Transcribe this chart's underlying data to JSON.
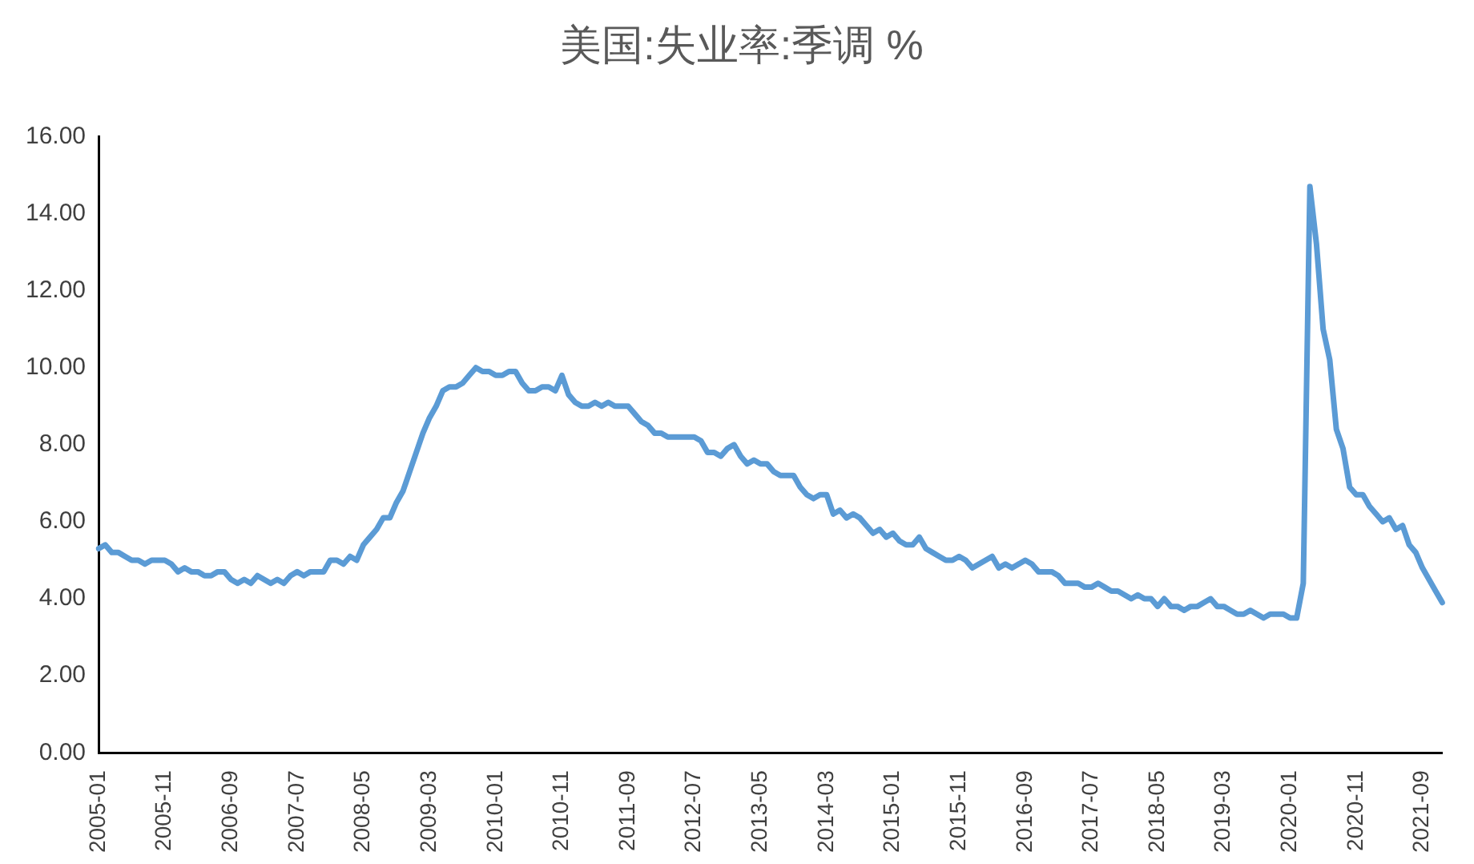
{
  "chart_data": {
    "type": "line",
    "title": "美国:失业率:季调 %",
    "categories": [
      "2005-01",
      null,
      null,
      null,
      null,
      null,
      null,
      null,
      null,
      null,
      "2005-11",
      null,
      null,
      null,
      null,
      null,
      null,
      null,
      null,
      null,
      "2006-09",
      null,
      null,
      null,
      null,
      null,
      null,
      null,
      null,
      null,
      "2007-07",
      null,
      null,
      null,
      null,
      null,
      null,
      null,
      null,
      null,
      "2008-05",
      null,
      null,
      null,
      null,
      null,
      null,
      null,
      null,
      null,
      "2009-03",
      null,
      null,
      null,
      null,
      null,
      null,
      null,
      null,
      null,
      "2010-01",
      null,
      null,
      null,
      null,
      null,
      null,
      null,
      null,
      null,
      "2010-11",
      null,
      null,
      null,
      null,
      null,
      null,
      null,
      null,
      null,
      "2011-09",
      null,
      null,
      null,
      null,
      null,
      null,
      null,
      null,
      null,
      "2012-07",
      null,
      null,
      null,
      null,
      null,
      null,
      null,
      null,
      null,
      "2013-05",
      null,
      null,
      null,
      null,
      null,
      null,
      null,
      null,
      null,
      "2014-03",
      null,
      null,
      null,
      null,
      null,
      null,
      null,
      null,
      null,
      "2015-01",
      null,
      null,
      null,
      null,
      null,
      null,
      null,
      null,
      null,
      "2015-11",
      null,
      null,
      null,
      null,
      null,
      null,
      null,
      null,
      null,
      "2016-09",
      null,
      null,
      null,
      null,
      null,
      null,
      null,
      null,
      null,
      "2017-07",
      null,
      null,
      null,
      null,
      null,
      null,
      null,
      null,
      null,
      "2018-05",
      null,
      null,
      null,
      null,
      null,
      null,
      null,
      null,
      null,
      "2019-03",
      null,
      null,
      null,
      null,
      null,
      null,
      null,
      null,
      null,
      "2020-01",
      null,
      null,
      null,
      null,
      null,
      null,
      null,
      null,
      null,
      "2020-11",
      null,
      null,
      null,
      null,
      null,
      null,
      null,
      null,
      null,
      "2021-09",
      null,
      null,
      null
    ],
    "series": [
      {
        "color": "#5b9bd5",
        "values": [
          5.3,
          5.4,
          5.2,
          5.2,
          5.1,
          5.0,
          5.0,
          4.9,
          5.0,
          5.0,
          5.0,
          4.9,
          4.7,
          4.8,
          4.7,
          4.7,
          4.6,
          4.6,
          4.7,
          4.7,
          4.5,
          4.4,
          4.5,
          4.4,
          4.6,
          4.5,
          4.4,
          4.5,
          4.4,
          4.6,
          4.7,
          4.6,
          4.7,
          4.7,
          4.7,
          5.0,
          5.0,
          4.9,
          5.1,
          5.0,
          5.4,
          5.6,
          5.8,
          6.1,
          6.1,
          6.5,
          6.8,
          7.3,
          7.8,
          8.3,
          8.7,
          9.0,
          9.4,
          9.5,
          9.5,
          9.6,
          9.8,
          10.0,
          9.9,
          9.9,
          9.8,
          9.8,
          9.9,
          9.9,
          9.6,
          9.4,
          9.4,
          9.5,
          9.5,
          9.4,
          9.8,
          9.3,
          9.1,
          9.0,
          9.0,
          9.1,
          9.0,
          9.1,
          9.0,
          9.0,
          9.0,
          8.8,
          8.6,
          8.5,
          8.3,
          8.3,
          8.2,
          8.2,
          8.2,
          8.2,
          8.2,
          8.1,
          7.8,
          7.8,
          7.7,
          7.9,
          8.0,
          7.7,
          7.5,
          7.6,
          7.5,
          7.5,
          7.3,
          7.2,
          7.2,
          7.2,
          6.9,
          6.7,
          6.6,
          6.7,
          6.7,
          6.2,
          6.3,
          6.1,
          6.2,
          6.1,
          5.9,
          5.7,
          5.8,
          5.6,
          5.7,
          5.5,
          5.4,
          5.4,
          5.6,
          5.3,
          5.2,
          5.1,
          5.0,
          5.0,
          5.1,
          5.0,
          4.8,
          4.9,
          5.0,
          5.1,
          4.8,
          4.9,
          4.8,
          4.9,
          5.0,
          4.9,
          4.7,
          4.7,
          4.7,
          4.6,
          4.4,
          4.4,
          4.4,
          4.3,
          4.3,
          4.4,
          4.3,
          4.2,
          4.2,
          4.1,
          4.0,
          4.1,
          4.0,
          4.0,
          3.8,
          4.0,
          3.8,
          3.8,
          3.7,
          3.8,
          3.8,
          3.9,
          4.0,
          3.8,
          3.8,
          3.7,
          3.6,
          3.6,
          3.7,
          3.6,
          3.5,
          3.6,
          3.6,
          3.6,
          3.5,
          3.5,
          4.4,
          14.7,
          13.2,
          11.0,
          10.2,
          8.4,
          7.9,
          6.9,
          6.7,
          6.7,
          6.4,
          6.2,
          6.0,
          6.1,
          5.8,
          5.9,
          5.4,
          5.2,
          4.8,
          4.5,
          4.2,
          3.9
        ]
      }
    ],
    "ylim": [
      0,
      16
    ],
    "yticks": [
      {
        "value": 0,
        "label": "0.00"
      },
      {
        "value": 2,
        "label": "2.00"
      },
      {
        "value": 4,
        "label": "4.00"
      },
      {
        "value": 6,
        "label": "6.00"
      },
      {
        "value": 8,
        "label": "8.00"
      },
      {
        "value": 10,
        "label": "10.00"
      },
      {
        "value": 12,
        "label": "12.00"
      },
      {
        "value": 14,
        "label": "14.00"
      },
      {
        "value": 16,
        "label": "16.00"
      }
    ],
    "grid": false,
    "legend": false,
    "marker": "none",
    "line_style": "solid"
  }
}
